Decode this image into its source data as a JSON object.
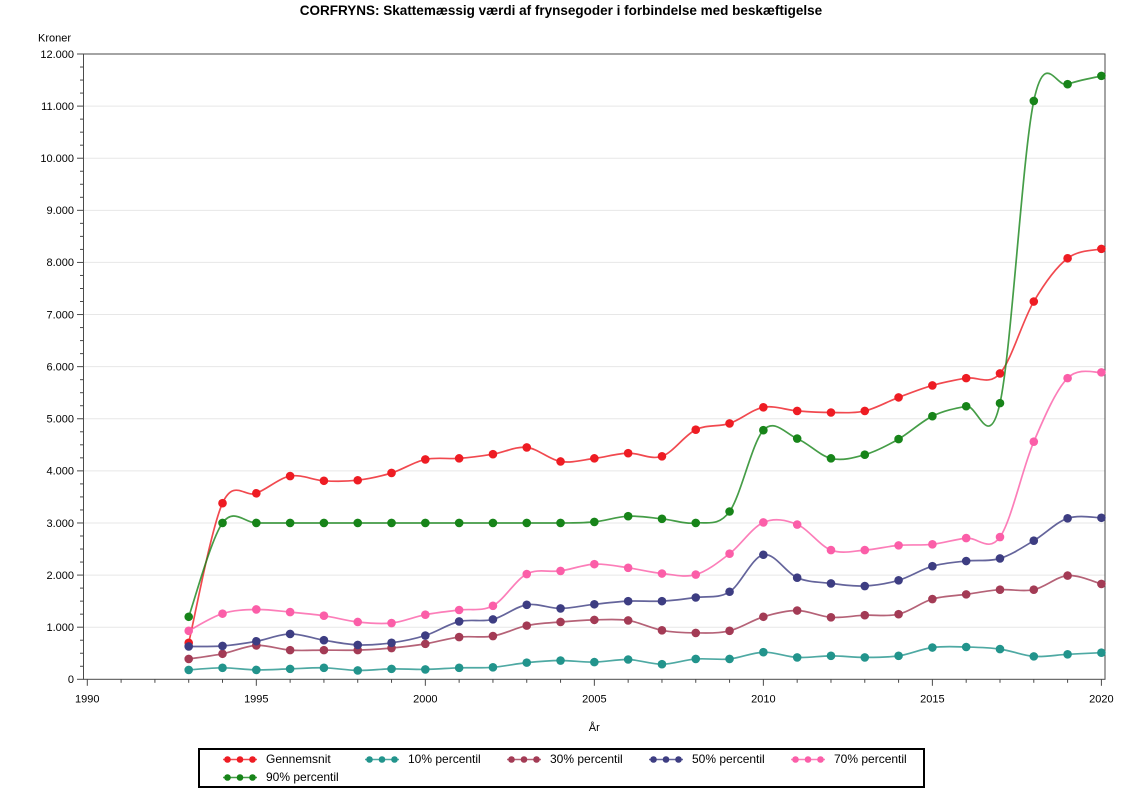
{
  "title": "CORFRYNS: Skattemæssig værdi af frynsegoder i forbindelse med beskæftigelse",
  "chart_data": {
    "type": "line",
    "xlabel": "År",
    "ylabel": "Kroner",
    "xlim": [
      1990,
      2020
    ],
    "ylim": [
      0,
      12000
    ],
    "grid": "horizontal-only",
    "legend_position": "bottom",
    "x_major_ticks": [
      1990,
      1995,
      2000,
      2005,
      2010,
      2015,
      2020
    ],
    "x_minor_step": 1,
    "y_major_ticks": [
      0,
      1000,
      2000,
      3000,
      4000,
      5000,
      6000,
      7000,
      8000,
      9000,
      10000,
      11000,
      12000
    ],
    "y_tick_labels": [
      "0",
      "1.000",
      "2.000",
      "3.000",
      "4.000",
      "5.000",
      "6.000",
      "7.000",
      "8.000",
      "9.000",
      "10.000",
      "11.000",
      "12.000"
    ],
    "y_minor_step": 250,
    "x": [
      1993,
      1994,
      1995,
      1996,
      1997,
      1998,
      1999,
      2000,
      2001,
      2002,
      2003,
      2004,
      2005,
      2006,
      2007,
      2008,
      2009,
      2010,
      2011,
      2012,
      2013,
      2014,
      2015,
      2016,
      2017,
      2018,
      2019,
      2020
    ],
    "series": [
      {
        "name": "Gennemsnit",
        "color": "#ee1c23",
        "values": [
          700,
          3380,
          3570,
          3900,
          3810,
          3820,
          3960,
          4220,
          4240,
          4320,
          4450,
          4180,
          4240,
          4340,
          4280,
          4790,
          4910,
          5220,
          5150,
          5120,
          5150,
          5410,
          5640,
          5780,
          5870,
          7250,
          8080,
          8260
        ]
      },
      {
        "name": "10% percentil",
        "color": "#22948c",
        "values": [
          180,
          220,
          180,
          200,
          220,
          170,
          200,
          190,
          220,
          230,
          320,
          360,
          330,
          380,
          290,
          390,
          390,
          520,
          420,
          450,
          420,
          450,
          610,
          620,
          580,
          440,
          480,
          510
        ]
      },
      {
        "name": "30% percentil",
        "color": "#a33b55",
        "values": [
          390,
          490,
          650,
          560,
          560,
          560,
          600,
          680,
          810,
          830,
          1030,
          1100,
          1140,
          1130,
          940,
          890,
          930,
          1200,
          1320,
          1190,
          1230,
          1250,
          1540,
          1630,
          1720,
          1720,
          1990,
          1830
        ]
      },
      {
        "name": "50% percentil",
        "color": "#3d3d82",
        "values": [
          630,
          640,
          730,
          870,
          750,
          660,
          700,
          840,
          1110,
          1150,
          1430,
          1360,
          1440,
          1500,
          1500,
          1570,
          1680,
          2390,
          1950,
          1840,
          1790,
          1900,
          2170,
          2270,
          2320,
          2660,
          3090,
          3100
        ]
      },
      {
        "name": "70% percentil",
        "color": "#fb5ea8",
        "values": [
          930,
          1260,
          1340,
          1290,
          1220,
          1100,
          1080,
          1240,
          1330,
          1410,
          2020,
          2080,
          2210,
          2140,
          2030,
          2010,
          2410,
          3010,
          2970,
          2480,
          2480,
          2570,
          2590,
          2710,
          2730,
          4560,
          5780,
          5890
        ]
      },
      {
        "name": "90% percentil",
        "color": "#178419",
        "values": [
          1200,
          3000,
          3000,
          3000,
          3000,
          3000,
          3000,
          3000,
          3000,
          3000,
          3000,
          3000,
          3020,
          3130,
          3080,
          3000,
          3220,
          4780,
          4620,
          4240,
          4310,
          4610,
          5050,
          5240,
          5300,
          11100,
          11420,
          11580
        ]
      }
    ]
  },
  "style": {
    "frame_color": "#4a4a4a",
    "grid_color": "#e7e7e7",
    "text_color": "#000000",
    "background": "#ffffff"
  }
}
